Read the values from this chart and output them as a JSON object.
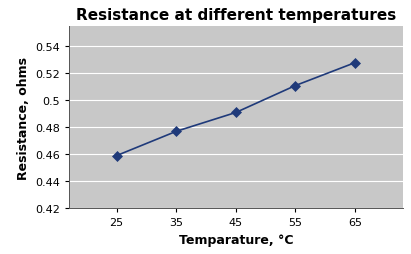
{
  "title": "Resistance at different temperatures",
  "xlabel": "Temparature, °C",
  "ylabel": "Resistance, ohms",
  "x": [
    25,
    35,
    45,
    55,
    65
  ],
  "y": [
    0.459,
    0.477,
    0.491,
    0.511,
    0.528
  ],
  "line_color": "#1F3A7A",
  "marker_color": "#1F3A7A",
  "marker": "D",
  "marker_size": 5,
  "linewidth": 1.2,
  "xlim": [
    17,
    73
  ],
  "ylim": [
    0.42,
    0.555
  ],
  "yticks": [
    0.42,
    0.44,
    0.46,
    0.48,
    0.5,
    0.52,
    0.54
  ],
  "ytick_labels": [
    "0.42",
    "0.44",
    "0.46",
    "0.48",
    "0.5",
    "0.52",
    "0.54"
  ],
  "xticks": [
    25,
    35,
    45,
    55,
    65
  ],
  "figure_bg_color": "#FFFFFF",
  "plot_bg_color": "#C8C8C8",
  "title_fontsize": 11,
  "label_fontsize": 9,
  "tick_fontsize": 8,
  "grid_color": "#FFFFFF",
  "grid_linewidth": 0.8
}
